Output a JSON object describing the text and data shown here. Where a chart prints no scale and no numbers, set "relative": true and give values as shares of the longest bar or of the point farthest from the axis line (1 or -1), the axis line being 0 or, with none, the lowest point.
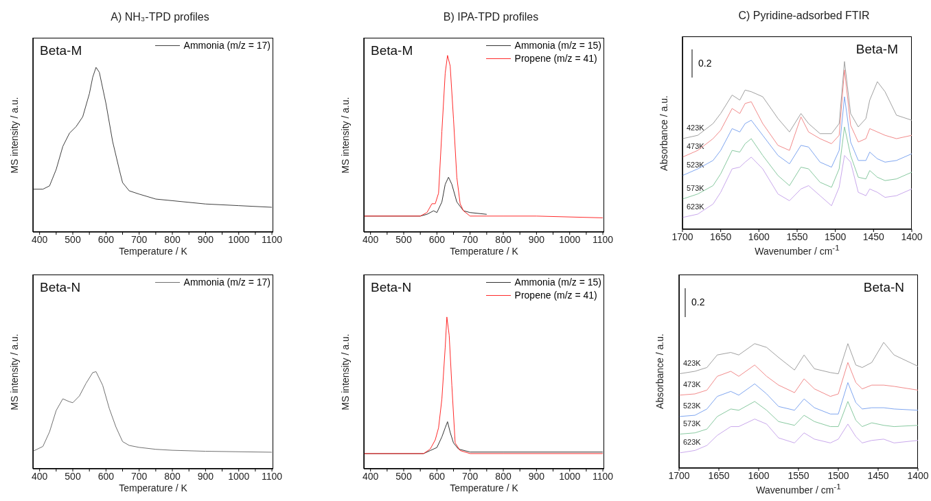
{
  "chart_data": [
    {
      "type": "line",
      "title": "A) NH₃-TPD profiles",
      "xlabel": "Temperature / K",
      "ylabel": "MS intensity / a.u.",
      "relative": true,
      "legend": "top right",
      "annotations": [
        "Beta-M"
      ],
      "xlim": [
        380,
        1104
      ],
      "xticks": [
        400,
        {
          "value": 450,
          "label": null
        },
        500,
        {
          "value": 550,
          "label": null
        },
        600,
        {
          "value": 650,
          "label": null
        },
        700,
        {
          "value": 750,
          "label": null
        },
        800,
        {
          "value": 850,
          "label": null
        },
        900,
        {
          "value": 950,
          "label": null
        },
        1000,
        {
          "value": 1050,
          "label": null
        },
        1100
      ],
      "series": [
        {
          "name": "Ammonia (m/z = 17)",
          "color": "#404040",
          "x": [
            380,
            410,
            430,
            450,
            470,
            490,
            510,
            530,
            550,
            560,
            570,
            580,
            600,
            620,
            640,
            650,
            670,
            700,
            750,
            800,
            900,
            1000,
            1100
          ],
          "values": [
            0.26,
            0.26,
            0.28,
            0.38,
            0.52,
            0.6,
            0.64,
            0.7,
            0.84,
            0.94,
            1,
            0.97,
            0.78,
            0.55,
            0.38,
            0.3,
            0.25,
            0.23,
            0.2,
            0.19,
            0.17,
            0.16,
            0.15
          ]
        }
      ]
    },
    {
      "type": "line",
      "title": "B) IPA-TPD profiles",
      "xlabel": "Temperature / K",
      "ylabel": "MS intensity / a.u.",
      "relative": true,
      "legend": "top right",
      "annotations": [
        "Beta-M"
      ],
      "xlim": [
        380,
        1104
      ],
      "xticks": [
        400,
        {
          "value": 450,
          "label": null
        },
        500,
        {
          "value": 550,
          "label": null
        },
        600,
        {
          "value": 650,
          "label": null
        },
        700,
        {
          "value": 750,
          "label": null
        },
        800,
        {
          "value": 850,
          "label": null
        },
        900,
        {
          "value": 950,
          "label": null
        },
        1000,
        {
          "value": 1050,
          "label": null
        },
        1100
      ],
      "series": [
        {
          "name": "Ammonia (m/z = 15)",
          "color": "#333333",
          "x": [
            380,
            550,
            570,
            590,
            600,
            615,
            625,
            635,
            645,
            660,
            680,
            700,
            750
          ],
          "values": [
            0.09,
            0.09,
            0.1,
            0.12,
            0.11,
            0.17,
            0.27,
            0.31,
            0.27,
            0.17,
            0.12,
            0.11,
            0.1
          ]
        },
        {
          "name": "Propene (m/z = 41)",
          "color": "#ff2a2a",
          "x": [
            380,
            550,
            570,
            585,
            595,
            605,
            615,
            625,
            632,
            640,
            650,
            660,
            670,
            680,
            700,
            750,
            800,
            900,
            1100
          ],
          "values": [
            0.09,
            0.09,
            0.11,
            0.16,
            0.16,
            0.22,
            0.57,
            0.9,
            1,
            0.94,
            0.64,
            0.31,
            0.16,
            0.12,
            0.09,
            0.09,
            0.09,
            0.09,
            0.08
          ]
        }
      ]
    },
    {
      "type": "line",
      "title": "C) Pyridine-adsorbed FTIR",
      "xlabel": "Wavenumber / cm$^{-1}$",
      "ylabel": "Absorbance / a.u.",
      "relative": true,
      "annotations": [
        "Beta-M",
        "0.2"
      ],
      "xlim": [
        1700,
        1400
      ],
      "xticks": [
        1700,
        1650,
        1600,
        1550,
        1500,
        1450,
        1400
      ],
      "series": [
        {
          "name": "423K",
          "color": "#a0a0a0",
          "x": [
            1700,
            1680,
            1660,
            1650,
            1635,
            1625,
            1618,
            1610,
            1595,
            1575,
            1560,
            1545,
            1535,
            1520,
            1505,
            1495,
            1488,
            1480,
            1470,
            1460,
            1455,
            1445,
            1435,
            1420,
            1400
          ],
          "values": [
            0.54,
            0.56,
            0.63,
            0.69,
            0.8,
            0.77,
            0.83,
            0.82,
            0.79,
            0.66,
            0.58,
            0.69,
            0.63,
            0.57,
            0.57,
            0.63,
            1,
            0.69,
            0.61,
            0.66,
            0.77,
            0.88,
            0.82,
            0.68,
            0.65
          ]
        },
        {
          "name": "473K",
          "color": "#f28b8b",
          "x": [
            1700,
            1680,
            1660,
            1650,
            1635,
            1625,
            1618,
            1610,
            1595,
            1575,
            1560,
            1545,
            1535,
            1520,
            1505,
            1495,
            1488,
            1480,
            1470,
            1460,
            1455,
            1445,
            1435,
            1420,
            1400
          ],
          "values": [
            0.43,
            0.47,
            0.54,
            0.59,
            0.72,
            0.69,
            0.75,
            0.76,
            0.63,
            0.5,
            0.47,
            0.67,
            0.58,
            0.54,
            0.51,
            0.56,
            0.95,
            0.62,
            0.52,
            0.54,
            0.6,
            0.58,
            0.56,
            0.54,
            0.56
          ]
        },
        {
          "name": "523K",
          "color": "#7fa6f0",
          "x": [
            1700,
            1680,
            1660,
            1650,
            1635,
            1625,
            1618,
            1610,
            1595,
            1575,
            1560,
            1545,
            1535,
            1520,
            1505,
            1495,
            1488,
            1480,
            1470,
            1460,
            1455,
            1445,
            1435,
            1420,
            1400
          ],
          "values": [
            0.32,
            0.36,
            0.41,
            0.47,
            0.6,
            0.58,
            0.63,
            0.65,
            0.56,
            0.44,
            0.39,
            0.5,
            0.49,
            0.4,
            0.37,
            0.47,
            0.79,
            0.52,
            0.41,
            0.41,
            0.46,
            0.42,
            0.4,
            0.41,
            0.45
          ]
        },
        {
          "name": "573K",
          "color": "#88c9a0",
          "x": [
            1700,
            1680,
            1660,
            1650,
            1635,
            1625,
            1618,
            1610,
            1595,
            1575,
            1560,
            1545,
            1535,
            1520,
            1505,
            1495,
            1488,
            1480,
            1470,
            1460,
            1455,
            1445,
            1435,
            1420,
            1400
          ],
          "values": [
            0.18,
            0.21,
            0.26,
            0.33,
            0.47,
            0.46,
            0.51,
            0.54,
            0.44,
            0.32,
            0.26,
            0.37,
            0.36,
            0.28,
            0.25,
            0.36,
            0.61,
            0.44,
            0.31,
            0.3,
            0.35,
            0.31,
            0.29,
            0.3,
            0.34
          ]
        },
        {
          "name": "623K",
          "color": "#c9a8ec",
          "x": [
            1700,
            1680,
            1660,
            1650,
            1635,
            1625,
            1618,
            1610,
            1595,
            1575,
            1560,
            1545,
            1535,
            1520,
            1505,
            1495,
            1488,
            1480,
            1470,
            1460,
            1455,
            1445,
            1435,
            1420,
            1400
          ],
          "values": [
            0.07,
            0.09,
            0.15,
            0.22,
            0.36,
            0.37,
            0.4,
            0.43,
            0.36,
            0.21,
            0.17,
            0.24,
            0.26,
            0.2,
            0.14,
            0.25,
            0.44,
            0.4,
            0.22,
            0.2,
            0.24,
            0.22,
            0.19,
            0.2,
            0.24
          ]
        }
      ]
    },
    {
      "type": "line",
      "xlabel": "Temperature / K",
      "ylabel": "MS intensity / a.u.",
      "relative": true,
      "legend": "top right",
      "annotations": [
        "Beta-N"
      ],
      "xlim": [
        380,
        1104
      ],
      "xticks": [
        400,
        {
          "value": 450,
          "label": null
        },
        500,
        {
          "value": 550,
          "label": null
        },
        600,
        {
          "value": 650,
          "label": null
        },
        700,
        {
          "value": 750,
          "label": null
        },
        800,
        {
          "value": 850,
          "label": null
        },
        900,
        {
          "value": 950,
          "label": null
        },
        1000,
        {
          "value": 1050,
          "label": null
        },
        1100
      ],
      "series": [
        {
          "name": "Ammonia (m/z = 17)",
          "color": "#707070",
          "x": [
            380,
            410,
            430,
            450,
            470,
            490,
            500,
            520,
            540,
            560,
            570,
            590,
            610,
            630,
            650,
            670,
            700,
            750,
            800,
            900,
            1100
          ],
          "values": [
            0.18,
            0.23,
            0.38,
            0.6,
            0.72,
            0.69,
            0.68,
            0.75,
            0.88,
            0.99,
            1,
            0.86,
            0.62,
            0.43,
            0.28,
            0.24,
            0.22,
            0.2,
            0.19,
            0.18,
            0.17
          ]
        }
      ]
    },
    {
      "type": "line",
      "xlabel": "Temperature / K",
      "ylabel": "MS intensity / a.u.",
      "relative": true,
      "legend": "top right",
      "annotations": [
        "Beta-N"
      ],
      "xlim": [
        380,
        1104
      ],
      "xticks": [
        400,
        {
          "value": 450,
          "label": null
        },
        500,
        {
          "value": 550,
          "label": null
        },
        600,
        {
          "value": 650,
          "label": null
        },
        700,
        {
          "value": 750,
          "label": null
        },
        800,
        {
          "value": 850,
          "label": null
        },
        900,
        {
          "value": 950,
          "label": null
        },
        1000,
        {
          "value": 1050,
          "label": null
        },
        1100
      ],
      "series": [
        {
          "name": "Ammonia (m/z = 15)",
          "color": "#333333",
          "x": [
            380,
            560,
            580,
            600,
            615,
            625,
            632,
            640,
            650,
            665,
            700,
            800,
            1100
          ],
          "values": [
            0.1,
            0.1,
            0.12,
            0.14,
            0.21,
            0.27,
            0.31,
            0.24,
            0.17,
            0.13,
            0.11,
            0.11,
            0.11
          ]
        },
        {
          "name": "Propene (m/z = 41)",
          "color": "#ff2a2a",
          "x": [
            380,
            560,
            580,
            595,
            605,
            615,
            625,
            630,
            637,
            645,
            655,
            670,
            700,
            800,
            1100
          ],
          "values": [
            0.1,
            0.1,
            0.13,
            0.19,
            0.27,
            0.46,
            0.8,
            1,
            0.88,
            0.55,
            0.17,
            0.12,
            0.1,
            0.1,
            0.1
          ]
        }
      ]
    },
    {
      "type": "line",
      "xlabel": "Wavenumber / cm$^{-1}$",
      "ylabel": "Absorbance / a.u.",
      "relative": true,
      "annotations": [
        "Beta-N",
        "0.2"
      ],
      "xlim": [
        1700,
        1400
      ],
      "xticks": [
        1700,
        1650,
        1600,
        1550,
        1500,
        1450,
        1400
      ],
      "series": [
        {
          "name": "423K",
          "color": "#a0a0a0",
          "x": [
            1700,
            1680,
            1665,
            1652,
            1635,
            1625,
            1605,
            1590,
            1575,
            1555,
            1543,
            1530,
            1510,
            1500,
            1488,
            1478,
            1470,
            1458,
            1443,
            1430,
            1400
          ],
          "values": [
            0.75,
            0.77,
            0.8,
            0.9,
            0.92,
            0.9,
            0.99,
            0.96,
            0.88,
            0.78,
            0.9,
            0.79,
            0.76,
            0.75,
            0.99,
            0.82,
            0.8,
            0.84,
            1,
            0.9,
            0.81
          ]
        },
        {
          "name": "473K",
          "color": "#f28b8b",
          "x": [
            1700,
            1680,
            1665,
            1652,
            1635,
            1625,
            1605,
            1590,
            1575,
            1555,
            1543,
            1530,
            1510,
            1500,
            1488,
            1478,
            1470,
            1458,
            1443,
            1430,
            1400
          ],
          "values": [
            0.58,
            0.59,
            0.62,
            0.73,
            0.77,
            0.73,
            0.82,
            0.73,
            0.66,
            0.6,
            0.71,
            0.63,
            0.57,
            0.59,
            0.84,
            0.68,
            0.63,
            0.66,
            0.66,
            0.65,
            0.62
          ]
        },
        {
          "name": "523K",
          "color": "#7fa6f0",
          "x": [
            1700,
            1680,
            1665,
            1652,
            1635,
            1625,
            1605,
            1590,
            1575,
            1555,
            1543,
            1530,
            1510,
            1500,
            1488,
            1478,
            1470,
            1458,
            1443,
            1430,
            1400
          ],
          "values": [
            0.41,
            0.42,
            0.47,
            0.57,
            0.61,
            0.58,
            0.67,
            0.59,
            0.49,
            0.46,
            0.55,
            0.48,
            0.43,
            0.43,
            0.68,
            0.52,
            0.47,
            0.48,
            0.48,
            0.47,
            0.46
          ]
        },
        {
          "name": "573K",
          "color": "#88c9a0",
          "x": [
            1700,
            1680,
            1665,
            1652,
            1635,
            1625,
            1605,
            1590,
            1575,
            1555,
            1543,
            1530,
            1510,
            1500,
            1488,
            1478,
            1470,
            1458,
            1443,
            1430,
            1400
          ],
          "values": [
            0.27,
            0.28,
            0.31,
            0.41,
            0.47,
            0.46,
            0.53,
            0.46,
            0.37,
            0.34,
            0.42,
            0.37,
            0.33,
            0.33,
            0.53,
            0.38,
            0.33,
            0.36,
            0.34,
            0.33,
            0.34
          ]
        },
        {
          "name": "623K",
          "color": "#c9a8ec",
          "x": [
            1700,
            1680,
            1665,
            1652,
            1635,
            1625,
            1605,
            1590,
            1575,
            1555,
            1543,
            1530,
            1510,
            1500,
            1488,
            1478,
            1470,
            1458,
            1443,
            1430,
            1400
          ],
          "values": [
            0.12,
            0.14,
            0.18,
            0.26,
            0.33,
            0.33,
            0.39,
            0.35,
            0.24,
            0.2,
            0.28,
            0.23,
            0.2,
            0.23,
            0.35,
            0.25,
            0.2,
            0.22,
            0.23,
            0.2,
            0.22
          ]
        }
      ]
    }
  ]
}
